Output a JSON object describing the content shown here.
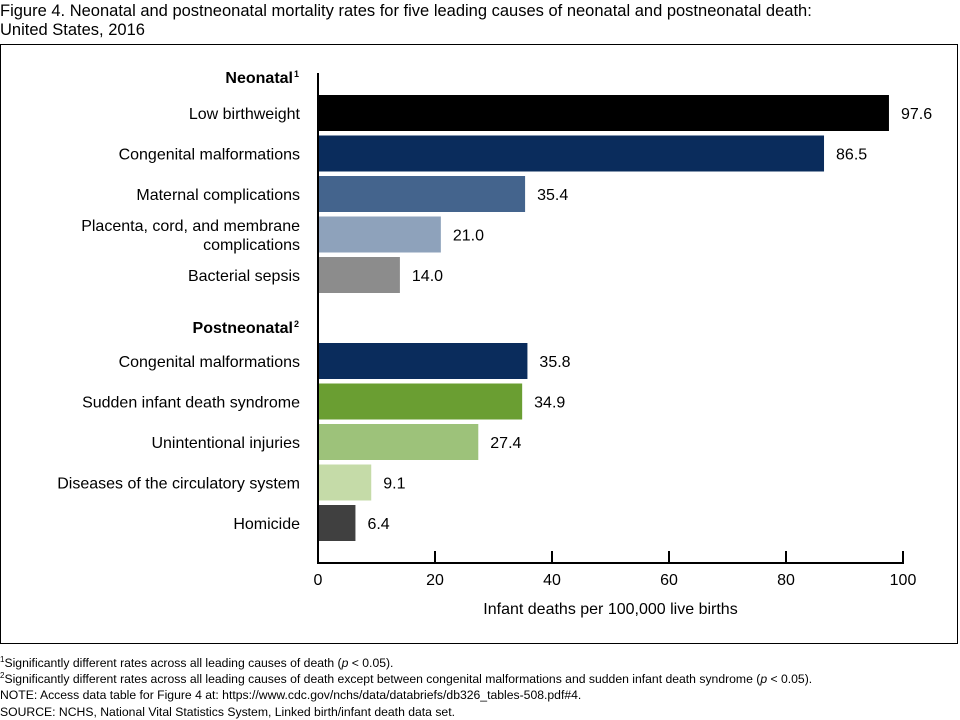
{
  "title": {
    "line1": "Figure 4. Neonatal and postneonatal mortality rates for five leading causes of neonatal and postneonatal death:",
    "line2": "United States, 2016"
  },
  "chart_data": {
    "type": "bar",
    "orientation": "horizontal",
    "groups": [
      {
        "name": "Neonatal",
        "footnote_marker": "1",
        "categories": [
          "Low birthweight",
          "Congenital malformations",
          "Maternal complications",
          "Placenta, cord, and membrane complications",
          "Bacterial sepsis"
        ],
        "category_lines": [
          [
            "Low birthweight"
          ],
          [
            "Congenital malformations"
          ],
          [
            "Maternal complications"
          ],
          [
            "Placenta, cord, and membrane",
            "complications"
          ],
          [
            "Bacterial sepsis"
          ]
        ],
        "values": [
          97.6,
          86.5,
          35.4,
          21.0,
          14.0
        ],
        "value_labels": [
          "97.6",
          "86.5",
          "35.4",
          "21.0",
          "14.0"
        ],
        "colors": [
          "#000000",
          "#0a2c5c",
          "#44648d",
          "#8ea2bb",
          "#8c8c8c"
        ]
      },
      {
        "name": "Postneonatal",
        "footnote_marker": "2",
        "categories": [
          "Congenital malformations",
          "Sudden infant death syndrome",
          "Unintentional injuries",
          "Diseases of the circulatory system",
          "Homicide"
        ],
        "category_lines": [
          [
            "Congenital malformations"
          ],
          [
            "Sudden infant death syndrome"
          ],
          [
            "Unintentional injuries"
          ],
          [
            "Diseases of the circulatory system"
          ],
          [
            "Homicide"
          ]
        ],
        "values": [
          35.8,
          34.9,
          27.4,
          9.1,
          6.4
        ],
        "value_labels": [
          "35.8",
          "34.9",
          "27.4",
          "9.1",
          "6.4"
        ],
        "colors": [
          "#0a2c5c",
          "#6a9e32",
          "#9dc27a",
          "#c5dba8",
          "#404040"
        ]
      }
    ],
    "xlabel": "Infant deaths per 100,000 live births",
    "xlim": [
      0,
      100
    ],
    "xticks": [
      0,
      20,
      40,
      60,
      80,
      100
    ],
    "grid": false
  },
  "footnotes": {
    "fn1_marker": "1",
    "fn1_text": "Significantly different rates across all leading causes of death (",
    "fn1_p": "p",
    "fn1_end": " < 0.05).",
    "fn2_marker": "2",
    "fn2_text": "Significantly different rates across all leading causes of death except between congenital malformations and sudden infant death syndrome (",
    "fn2_p": "p",
    "fn2_end": " < 0.05).",
    "note": "NOTE: Access data table for Figure 4 at: https://www.cdc.gov/nchs/data/databriefs/db326_tables-508.pdf#4.",
    "source": "SOURCE: NCHS, National Vital Statistics System, Linked birth/infant death data set."
  }
}
